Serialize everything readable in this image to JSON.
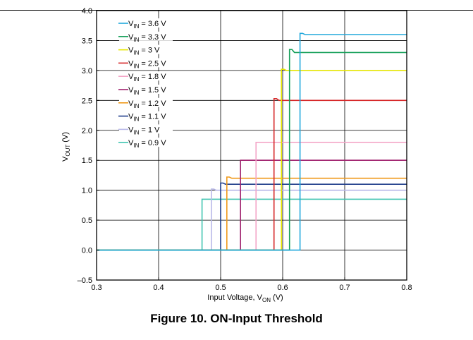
{
  "figure": {
    "caption": "Figure 10. ON-Input Threshold"
  },
  "chart_data": {
    "type": "line",
    "xlabel": {
      "main": "Input Voltage, V",
      "sub": "ON",
      "unit": " (V)"
    },
    "ylabel": {
      "main": "V",
      "sub": "OUT",
      "unit": " (V)"
    },
    "xlim": [
      0.3,
      0.8
    ],
    "ylim": [
      -0.5,
      4.0
    ],
    "x_ticks": [
      0.3,
      0.4,
      0.5,
      0.6,
      0.7,
      0.8
    ],
    "x_tick_labels": [
      "0.3",
      "0.4",
      "0.5",
      "0.6",
      "0.7",
      "0.8"
    ],
    "y_ticks": [
      -0.5,
      0.0,
      0.5,
      1.0,
      1.5,
      2.0,
      2.5,
      3.0,
      3.5,
      4.0
    ],
    "y_tick_labels": [
      "–0.5",
      "0.0",
      "0.5",
      "1.0",
      "1.5",
      "2.0",
      "2.5",
      "3.0",
      "3.5",
      "4.0"
    ],
    "grid": true,
    "legend_position": "top-left",
    "series": [
      {
        "name": "V_IN = 3.6 V",
        "label_main": "V",
        "label_sub": "IN",
        "label_rest": " = 3.6 V",
        "color": "#22a8dc",
        "threshold": 0.628,
        "vout": 3.6,
        "overshoot": 0.02
      },
      {
        "name": "V_IN = 3.3 V",
        "label_main": "V",
        "label_sub": "IN",
        "label_rest": " = 3.3 V",
        "color": "#16a05a",
        "threshold": 0.611,
        "vout": 3.3,
        "overshoot": 0.05
      },
      {
        "name": "V_IN = 3 V",
        "label_main": "V",
        "label_sub": "IN",
        "label_rest": " = 3 V",
        "color": "#e6e600",
        "threshold": 0.598,
        "vout": 3.0,
        "overshoot": 0.02
      },
      {
        "name": "V_IN = 2.5 V",
        "label_main": "V",
        "label_sub": "IN",
        "label_rest": " = 2.5 V",
        "color": "#d62728",
        "threshold": 0.586,
        "vout": 2.5,
        "overshoot": 0.03
      },
      {
        "name": "V_IN = 1.8 V",
        "label_main": "V",
        "label_sub": "IN",
        "label_rest": " = 1.8 V",
        "color": "#f4a6c8",
        "threshold": 0.557,
        "vout": 1.8,
        "overshoot": 0.0
      },
      {
        "name": "V_IN = 1.5 V",
        "label_main": "V",
        "label_sub": "IN",
        "label_rest": " = 1.5 V",
        "color": "#a0226e",
        "threshold": 0.532,
        "vout": 1.5,
        "overshoot": 0.0
      },
      {
        "name": "V_IN = 1.2 V",
        "label_main": "V",
        "label_sub": "IN",
        "label_rest": " = 1.2 V",
        "color": "#f09a1a",
        "threshold": 0.51,
        "vout": 1.2,
        "overshoot": 0.02
      },
      {
        "name": "V_IN = 1.1 V",
        "label_main": "V",
        "label_sub": "IN",
        "label_rest": " = 1.1 V",
        "color": "#1f3d8a",
        "threshold": 0.5,
        "vout": 1.1,
        "overshoot": 0.02
      },
      {
        "name": "V_IN = 1 V",
        "label_main": "V",
        "label_sub": "IN",
        "label_rest": " = 1 V",
        "color": "#b8b8e8",
        "threshold": 0.485,
        "vout": 1.0,
        "overshoot": 0.02
      },
      {
        "name": "V_IN = 0.9 V",
        "label_main": "V",
        "label_sub": "IN",
        "label_rest": " = 0.9 V",
        "color": "#3fc4b0",
        "threshold": 0.47,
        "vout": 0.85,
        "overshoot": 0.0
      }
    ]
  }
}
